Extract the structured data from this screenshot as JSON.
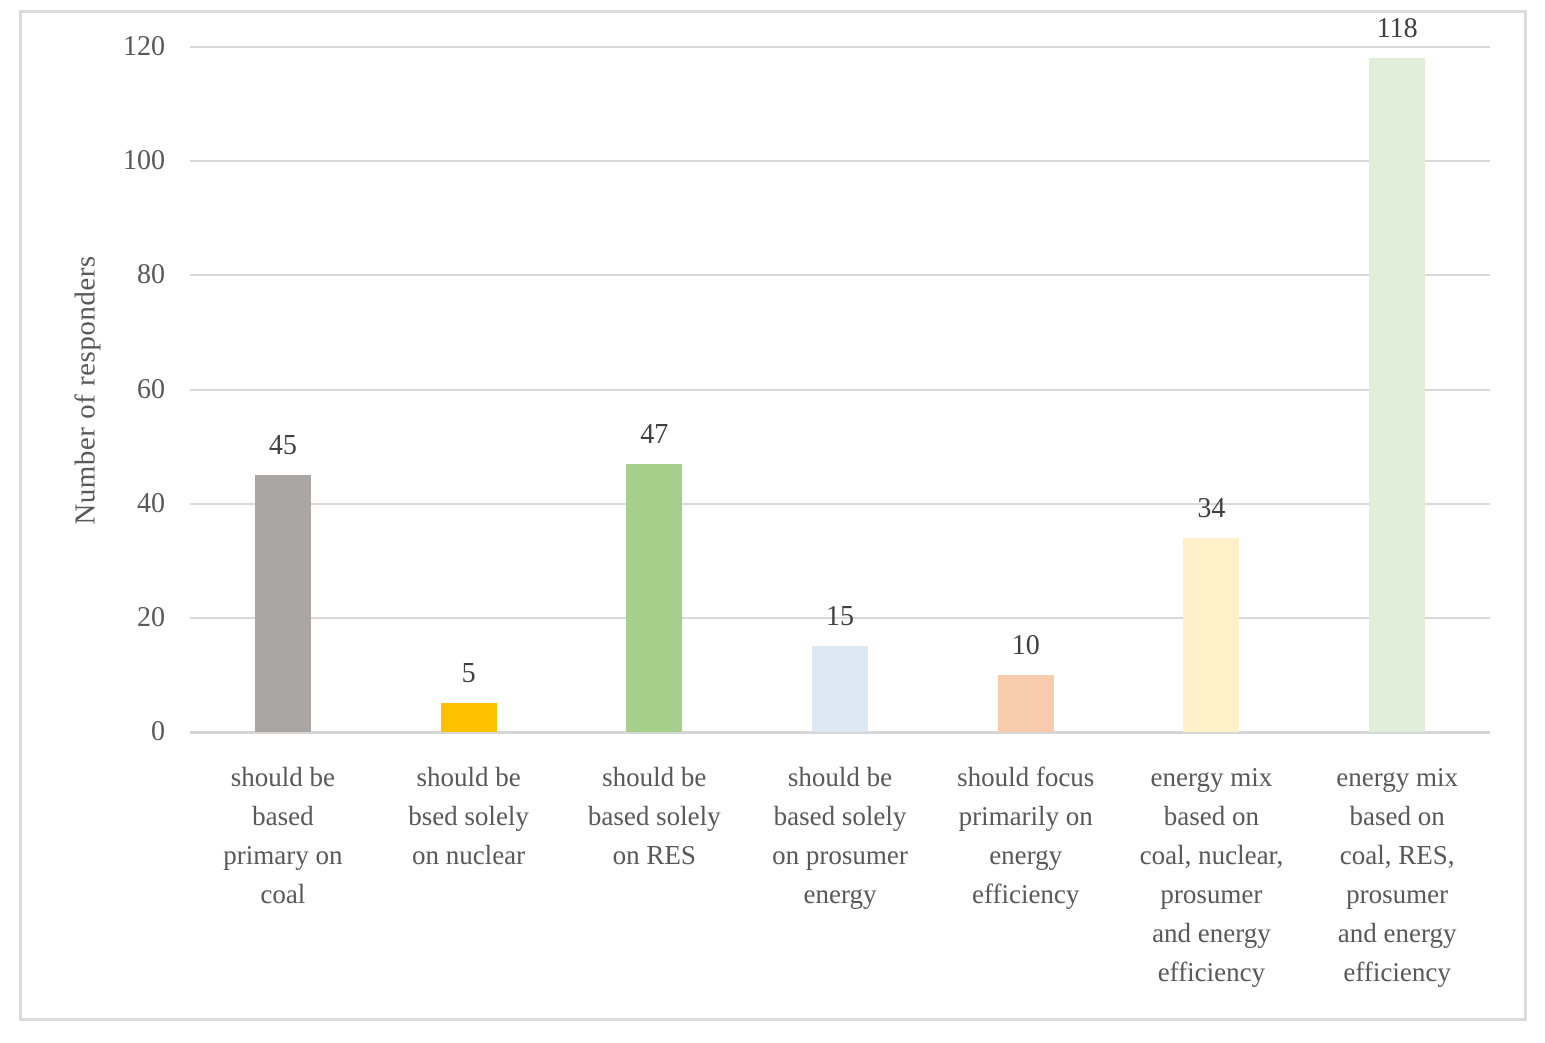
{
  "figure": {
    "border_color": "#dbdbdb",
    "background_color": "#ffffff"
  },
  "colors": {
    "gridline": "#d9d9d9",
    "axis_line": "#d6d6d6",
    "tick_text": "#595959",
    "category_text": "#595959",
    "value_text": "#404040"
  },
  "chart_data": {
    "type": "bar",
    "title": "",
    "xlabel": "",
    "ylabel": "Number of responders",
    "ylim": [
      0,
      120
    ],
    "ytick_step": 20,
    "ytick_labels": [
      "0",
      "20",
      "40",
      "60",
      "80",
      "100",
      "120"
    ],
    "grid": "horizontal",
    "legend": "none",
    "categories": [
      "should be\nbased\nprimary on\ncoal",
      "should be\nbsed solely\non nuclear",
      "should be\nbased solely\non RES",
      "should be\nbased solely\non prosumer\nenergy",
      "should focus\nprimarily on\nenergy\nefficiency",
      "energy mix\nbased on\ncoal, nuclear,\nprosumer\nand energy\nefficiency",
      "energy mix\nbased on\ncoal, RES,\nprosumer\nand energy\nefficiency"
    ],
    "values": [
      45,
      5,
      47,
      15,
      10,
      34,
      118
    ],
    "data_labels": [
      "45",
      "5",
      "47",
      "15",
      "10",
      "34",
      "118"
    ],
    "bar_colors": [
      "#a9a6a3",
      "#ffc000",
      "#a7cf8c",
      "#dce9f5",
      "#f7cbac",
      "#fff0c9",
      "#e1eed9"
    ]
  }
}
